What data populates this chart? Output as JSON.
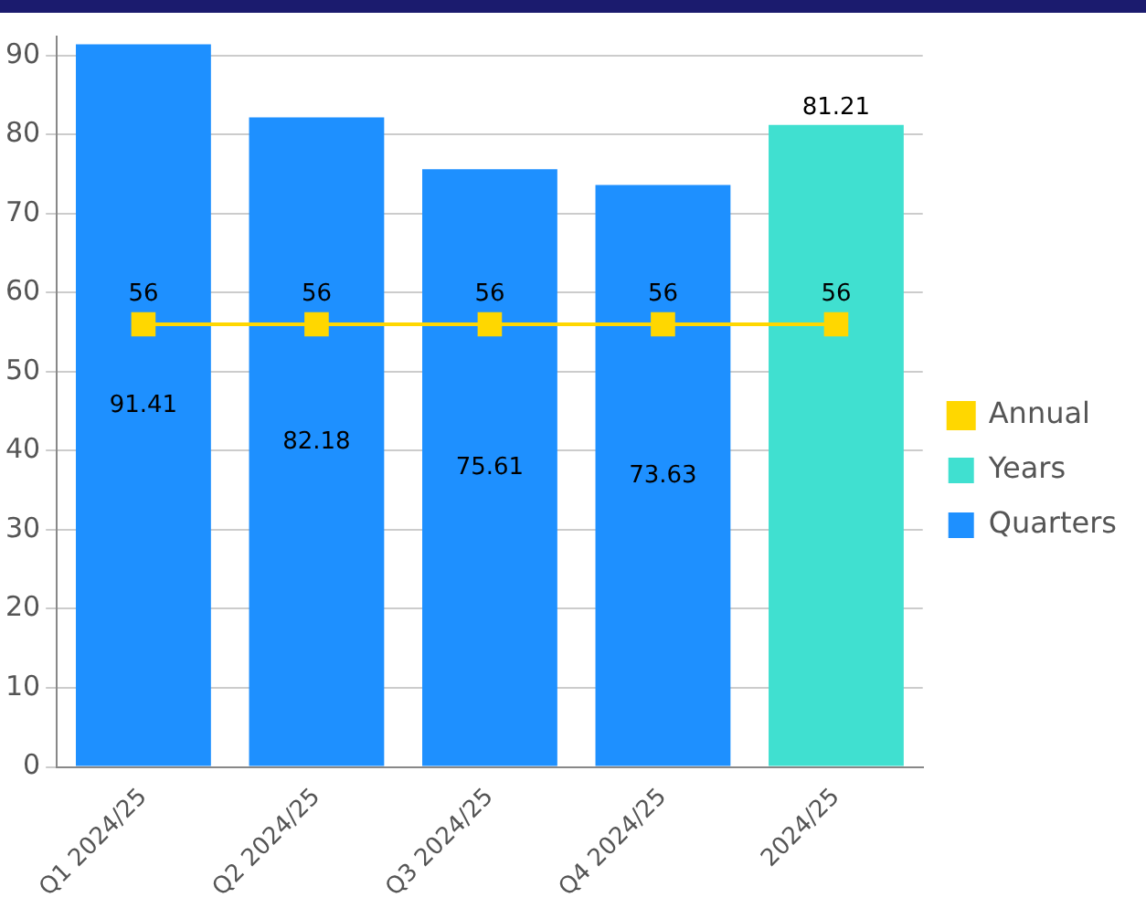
{
  "chart_data": {
    "type": "bar",
    "stacked": true,
    "categories": [
      "Q1 2024/25",
      "Q2 2024/25",
      "Q3 2024/25",
      "Q4 2024/25",
      "2024/25"
    ],
    "series": [
      {
        "name": "Years",
        "color": "#40e0d0",
        "values": [
          null,
          null,
          null,
          null,
          81.21
        ]
      },
      {
        "name": "Quarters",
        "color": "#1e90ff",
        "values": [
          91.41,
          82.18,
          75.61,
          73.63,
          null
        ]
      },
      {
        "name": "Annual",
        "type": "line",
        "color": "#ffd700",
        "marker": "square",
        "values": [
          56,
          56,
          56,
          56,
          56
        ]
      }
    ],
    "ylim": [
      0,
      92.4
    ],
    "yticks": [
      0,
      10,
      20,
      30,
      40,
      50,
      60,
      70,
      80,
      90
    ],
    "grid": "y",
    "legend": "right",
    "data_labels": true
  }
}
